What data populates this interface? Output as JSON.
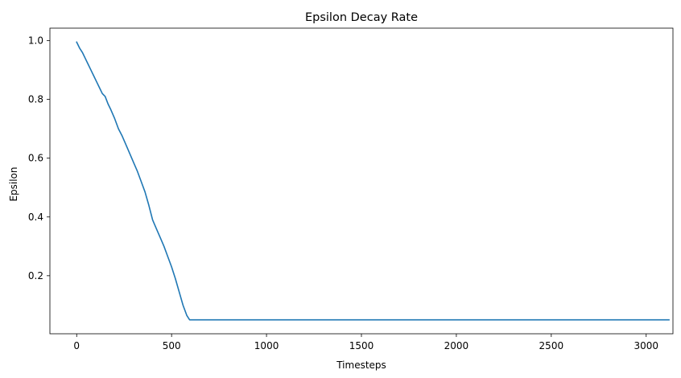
{
  "chart_data": {
    "type": "line",
    "title": "Epsilon Decay Rate",
    "xlabel": "Timesteps",
    "ylabel": "Epsilon",
    "xlim": [
      -141,
      3141
    ],
    "ylim": [
      0.0025,
      1.0425
    ],
    "xticks": [
      0,
      500,
      1000,
      1500,
      2000,
      2500,
      3000
    ],
    "yticks": [
      0.2,
      0.4,
      0.6,
      0.8,
      1.0
    ],
    "xtick_labels": [
      "0",
      "500",
      "1000",
      "1500",
      "2000",
      "2500",
      "3000"
    ],
    "ytick_labels": [
      "0.2",
      "0.4",
      "0.6",
      "0.8",
      "1.0"
    ],
    "grid": false,
    "legend": null,
    "series": [
      {
        "color": "#1f77b4",
        "x": [
          0,
          15,
          30,
          45,
          60,
          75,
          90,
          105,
          120,
          135,
          150,
          165,
          180,
          200,
          220,
          240,
          260,
          280,
          300,
          320,
          340,
          360,
          380,
          400,
          410,
          420,
          440,
          460,
          480,
          500,
          520,
          540,
          560,
          580,
          595,
          3120
        ],
        "y": [
          0.995,
          0.975,
          0.96,
          0.94,
          0.92,
          0.9,
          0.88,
          0.86,
          0.84,
          0.82,
          0.81,
          0.785,
          0.765,
          0.735,
          0.7,
          0.675,
          0.645,
          0.615,
          0.585,
          0.555,
          0.52,
          0.485,
          0.44,
          0.39,
          0.375,
          0.36,
          0.33,
          0.3,
          0.265,
          0.23,
          0.19,
          0.145,
          0.1,
          0.065,
          0.05,
          0.05
        ]
      }
    ]
  }
}
